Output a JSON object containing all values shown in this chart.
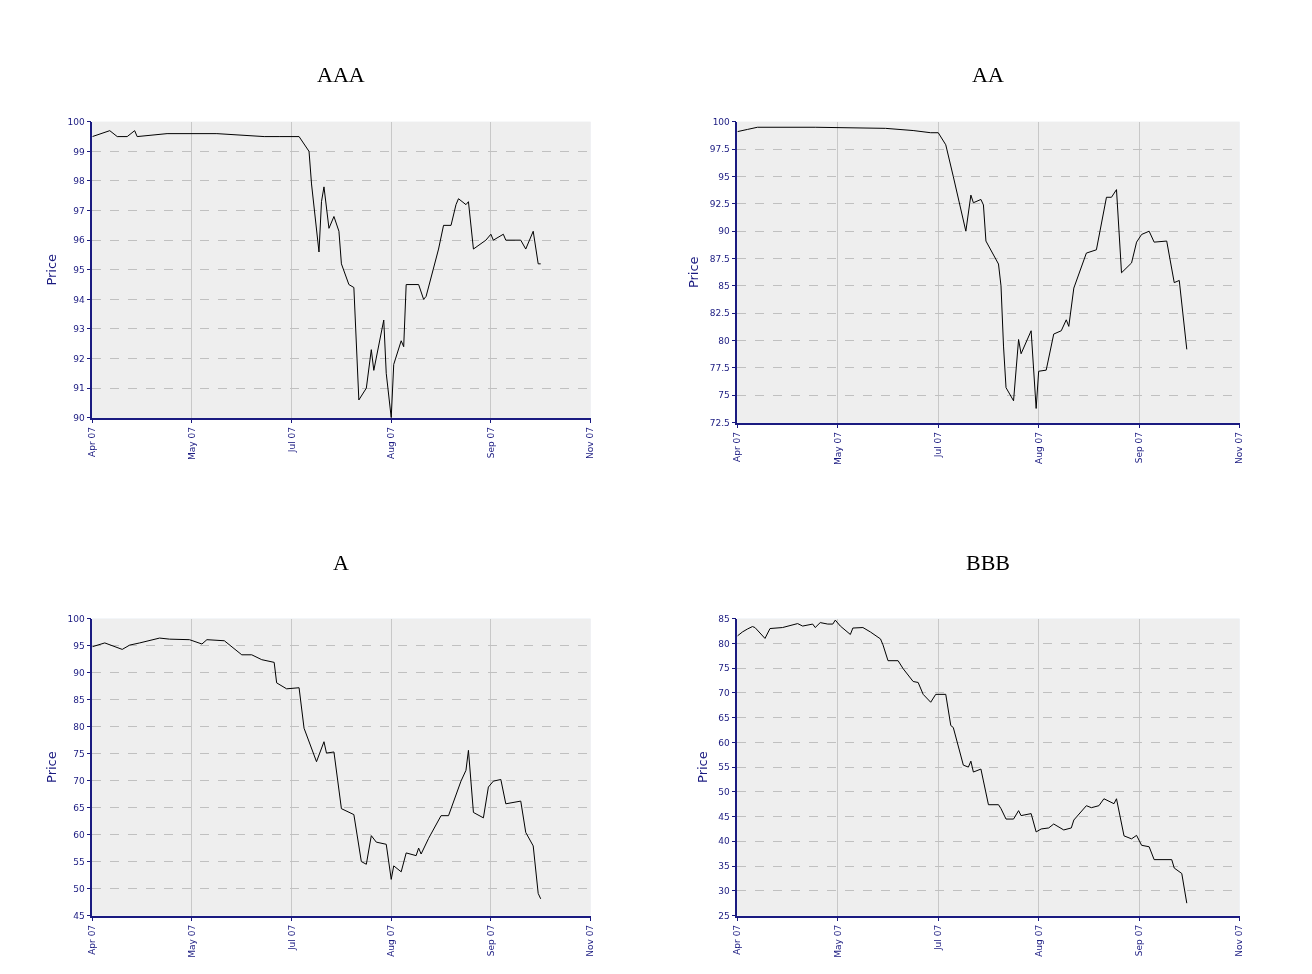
{
  "chart_data": [
    {
      "type": "line",
      "title": "AAA",
      "ylabel": "Price",
      "grid": true,
      "xlim": [
        "2007-04-16",
        "2007-11-02"
      ],
      "xticks": [
        {
          "value": "2007-04-16",
          "label": "Apr 07"
        },
        {
          "value": "2007-05-26",
          "label": "May 07"
        },
        {
          "value": "2007-07-05",
          "label": "Jul 07"
        },
        {
          "value": "2007-08-14",
          "label": "Aug 07"
        },
        {
          "value": "2007-09-23",
          "label": "Sep 07"
        },
        {
          "value": "2007-11-02",
          "label": "Nov 07"
        }
      ],
      "ylim": [
        90,
        100
      ],
      "yticks": [
        90,
        91,
        92,
        93,
        94,
        95,
        96,
        97,
        98,
        99,
        100
      ],
      "x": [
        "2007-04-16",
        "2007-04-23",
        "2007-04-26",
        "2007-04-30",
        "2007-05-03",
        "2007-05-04",
        "2007-05-16",
        "2007-06-05",
        "2007-06-24",
        "2007-06-30",
        "2007-07-08",
        "2007-07-12",
        "2007-07-13",
        "2007-07-16",
        "2007-07-17",
        "2007-07-18",
        "2007-07-20",
        "2007-07-22",
        "2007-07-24",
        "2007-07-25",
        "2007-07-28",
        "2007-07-30",
        "2007-08-01",
        "2007-08-04",
        "2007-08-06",
        "2007-08-07",
        "2007-08-11",
        "2007-08-12",
        "2007-08-14",
        "2007-08-15",
        "2007-08-18",
        "2007-08-19",
        "2007-08-20",
        "2007-08-25",
        "2007-08-27",
        "2007-08-28",
        "2007-09-02",
        "2007-09-04",
        "2007-09-07",
        "2007-09-09",
        "2007-09-10",
        "2007-09-13",
        "2007-09-14",
        "2007-09-16",
        "2007-09-21",
        "2007-09-23",
        "2007-09-24",
        "2007-09-28",
        "2007-09-29",
        "2007-10-05",
        "2007-10-07",
        "2007-10-10",
        "2007-10-12",
        "2007-10-13"
      ],
      "series": [
        {
          "color": "#000000",
          "values": [
            99.5,
            99.7,
            99.5,
            99.5,
            99.7,
            99.5,
            99.6,
            99.6,
            99.5,
            99.5,
            99.5,
            99.0,
            97.9,
            95.6,
            97.3,
            97.8,
            96.4,
            96.8,
            96.3,
            95.2,
            94.5,
            94.4,
            90.6,
            91.0,
            92.3,
            91.6,
            93.3,
            91.5,
            90.0,
            91.8,
            92.6,
            92.4,
            94.5,
            94.5,
            94.0,
            94.1,
            95.7,
            96.5,
            96.5,
            97.2,
            97.4,
            97.2,
            97.3,
            95.7,
            96.0,
            96.2,
            96.0,
            96.2,
            96.0,
            96.0,
            95.7,
            96.3,
            95.2,
            95.2
          ]
        }
      ]
    },
    {
      "type": "line",
      "title": "AA",
      "ylabel": "Price",
      "grid": true,
      "xlim": [
        "2007-04-16",
        "2007-11-02"
      ],
      "xticks": [
        {
          "value": "2007-04-16",
          "label": "Apr 07"
        },
        {
          "value": "2007-05-26",
          "label": "May 07"
        },
        {
          "value": "2007-07-05",
          "label": "Jul 07"
        },
        {
          "value": "2007-08-14",
          "label": "Aug 07"
        },
        {
          "value": "2007-09-23",
          "label": "Sep 07"
        },
        {
          "value": "2007-11-02",
          "label": "Nov 07"
        }
      ],
      "ylim": [
        72.5,
        100
      ],
      "yticks": [
        72.5,
        75,
        77.5,
        80,
        82.5,
        85,
        87.5,
        90,
        92.5,
        95,
        97.5,
        100
      ],
      "x": [
        "2007-04-16",
        "2007-04-20",
        "2007-04-24",
        "2007-05-17",
        "2007-06-14",
        "2007-06-25",
        "2007-07-02",
        "2007-07-05",
        "2007-07-08",
        "2007-07-11",
        "2007-07-16",
        "2007-07-18",
        "2007-07-19",
        "2007-07-22",
        "2007-07-23",
        "2007-07-24",
        "2007-07-29",
        "2007-07-30",
        "2007-07-31",
        "2007-08-01",
        "2007-08-04",
        "2007-08-06",
        "2007-08-07",
        "2007-08-11",
        "2007-08-13",
        "2007-08-14",
        "2007-08-17",
        "2007-08-20",
        "2007-08-23",
        "2007-08-25",
        "2007-08-26",
        "2007-08-28",
        "2007-09-02",
        "2007-09-06",
        "2007-09-10",
        "2007-09-12",
        "2007-09-14",
        "2007-09-16",
        "2007-09-20",
        "2007-09-22",
        "2007-09-24",
        "2007-09-27",
        "2007-09-29",
        "2007-10-04",
        "2007-10-07",
        "2007-10-09",
        "2007-10-12"
      ],
      "series": [
        {
          "color": "#000000",
          "values": [
            99.1,
            99.3,
            99.5,
            99.5,
            99.4,
            99.2,
            99.0,
            99.0,
            97.9,
            95.0,
            90.0,
            93.3,
            92.6,
            92.9,
            92.4,
            89.1,
            87.0,
            85.0,
            79.5,
            75.7,
            74.5,
            80.1,
            78.8,
            80.9,
            73.8,
            77.2,
            77.3,
            80.6,
            80.9,
            81.9,
            81.3,
            84.8,
            88.0,
            88.3,
            93.1,
            93.1,
            93.8,
            86.2,
            87.1,
            89.0,
            89.7,
            90.0,
            89.0,
            89.1,
            85.3,
            85.5,
            79.2
          ]
        }
      ]
    },
    {
      "type": "line",
      "title": "A",
      "ylabel": "Price",
      "grid": true,
      "xlim": [
        "2007-04-16",
        "2007-11-02"
      ],
      "xticks": [
        {
          "value": "2007-04-16",
          "label": "Apr 07"
        },
        {
          "value": "2007-05-26",
          "label": "May 07"
        },
        {
          "value": "2007-07-05",
          "label": "Jul 07"
        },
        {
          "value": "2007-08-14",
          "label": "Aug 07"
        },
        {
          "value": "2007-09-23",
          "label": "Sep 07"
        },
        {
          "value": "2007-11-02",
          "label": "Nov 07"
        }
      ],
      "ylim": [
        45,
        100
      ],
      "yticks": [
        45,
        50,
        55,
        60,
        65,
        70,
        75,
        80,
        85,
        90,
        95,
        100
      ],
      "x": [
        "2007-04-16",
        "2007-04-21",
        "2007-04-28",
        "2007-05-01",
        "2007-05-05",
        "2007-05-13",
        "2007-05-17",
        "2007-05-25",
        "2007-05-30",
        "2007-06-01",
        "2007-06-08",
        "2007-06-15",
        "2007-06-19",
        "2007-06-23",
        "2007-06-28",
        "2007-06-29",
        "2007-07-03",
        "2007-07-08",
        "2007-07-10",
        "2007-07-15",
        "2007-07-18",
        "2007-07-19",
        "2007-07-22",
        "2007-07-25",
        "2007-07-30",
        "2007-08-02",
        "2007-08-04",
        "2007-08-06",
        "2007-08-08",
        "2007-08-12",
        "2007-08-14",
        "2007-08-15",
        "2007-08-18",
        "2007-08-20",
        "2007-08-24",
        "2007-08-25",
        "2007-08-26",
        "2007-08-29",
        "2007-09-03",
        "2007-09-06",
        "2007-09-11",
        "2007-09-13",
        "2007-09-14",
        "2007-09-16",
        "2007-09-20",
        "2007-09-22",
        "2007-09-24",
        "2007-09-27",
        "2007-09-29",
        "2007-10-05",
        "2007-10-07",
        "2007-10-10",
        "2007-10-12",
        "2007-10-13"
      ],
      "series": [
        {
          "color": "#000000",
          "values": [
            94.8,
            95.5,
            94.3,
            95.1,
            95.5,
            96.4,
            96.2,
            96.1,
            95.3,
            96.1,
            95.9,
            93.3,
            93.3,
            92.4,
            91.9,
            88.1,
            87.0,
            87.2,
            79.7,
            73.5,
            77.2,
            75.1,
            75.3,
            64.8,
            63.7,
            55.0,
            54.5,
            59.8,
            58.6,
            58.2,
            51.7,
            54.2,
            53.1,
            56.6,
            56.1,
            57.5,
            56.4,
            59.3,
            63.5,
            63.5,
            69.9,
            71.9,
            75.6,
            64.1,
            63.1,
            68.8,
            69.9,
            70.2,
            65.7,
            66.2,
            60.4,
            57.9,
            49.1,
            48.1
          ]
        }
      ]
    },
    {
      "type": "line",
      "title": "BBB",
      "ylabel": "Price",
      "grid": true,
      "xlim": [
        "2007-04-16",
        "2007-11-02"
      ],
      "xticks": [
        {
          "value": "2007-04-16",
          "label": "Apr 07"
        },
        {
          "value": "2007-05-26",
          "label": "May 07"
        },
        {
          "value": "2007-07-05",
          "label": "Jul 07"
        },
        {
          "value": "2007-08-14",
          "label": "Aug 07"
        },
        {
          "value": "2007-09-23",
          "label": "Sep 07"
        },
        {
          "value": "2007-11-02",
          "label": "Nov 07"
        }
      ],
      "ylim": [
        25,
        85
      ],
      "yticks": [
        25,
        30,
        35,
        40,
        45,
        50,
        55,
        60,
        65,
        70,
        75,
        80,
        85
      ],
      "x": [
        "2007-04-16",
        "2007-04-18",
        "2007-04-20",
        "2007-04-22",
        "2007-04-23",
        "2007-04-27",
        "2007-04-29",
        "2007-05-04",
        "2007-05-10",
        "2007-05-12",
        "2007-05-16",
        "2007-05-17",
        "2007-05-19",
        "2007-05-22",
        "2007-05-24",
        "2007-05-25",
        "2007-05-27",
        "2007-05-31",
        "2007-06-01",
        "2007-06-05",
        "2007-06-08",
        "2007-06-12",
        "2007-06-13",
        "2007-06-15",
        "2007-06-19",
        "2007-06-21",
        "2007-06-25",
        "2007-06-27",
        "2007-06-29",
        "2007-07-02",
        "2007-07-04",
        "2007-07-08",
        "2007-07-10",
        "2007-07-11",
        "2007-07-15",
        "2007-07-17",
        "2007-07-18",
        "2007-07-19",
        "2007-07-22",
        "2007-07-23",
        "2007-07-25",
        "2007-07-29",
        "2007-07-30",
        "2007-08-01",
        "2007-08-04",
        "2007-08-06",
        "2007-08-07",
        "2007-08-11",
        "2007-08-13",
        "2007-08-15",
        "2007-08-18",
        "2007-08-20",
        "2007-08-24",
        "2007-08-27",
        "2007-08-28",
        "2007-09-02",
        "2007-09-04",
        "2007-09-07",
        "2007-09-09",
        "2007-09-13",
        "2007-09-14",
        "2007-09-17",
        "2007-09-20",
        "2007-09-22",
        "2007-09-24",
        "2007-09-27",
        "2007-09-29",
        "2007-10-06",
        "2007-10-07",
        "2007-10-10",
        "2007-10-12"
      ],
      "series": [
        {
          "color": "#000000",
          "values": [
            81.5,
            82.3,
            82.9,
            83.4,
            83.2,
            81.0,
            83.0,
            83.2,
            84.0,
            83.5,
            83.9,
            83.2,
            84.2,
            83.9,
            83.9,
            84.7,
            83.5,
            81.8,
            83.1,
            83.2,
            82.3,
            80.9,
            79.7,
            76.5,
            76.5,
            74.9,
            72.3,
            72.1,
            69.7,
            68.1,
            69.7,
            69.7,
            63.4,
            63.0,
            55.4,
            55.0,
            56.2,
            54.0,
            54.6,
            52.2,
            47.4,
            47.4,
            46.6,
            44.5,
            44.5,
            46.2,
            45.2,
            45.6,
            41.9,
            42.5,
            42.7,
            43.5,
            42.3,
            42.7,
            44.3,
            47.2,
            46.8,
            47.2,
            48.6,
            47.6,
            48.6,
            41.1,
            40.5,
            41.2,
            39.2,
            38.9,
            36.3,
            36.3,
            34.6,
            33.5,
            27.5
          ]
        }
      ]
    }
  ]
}
